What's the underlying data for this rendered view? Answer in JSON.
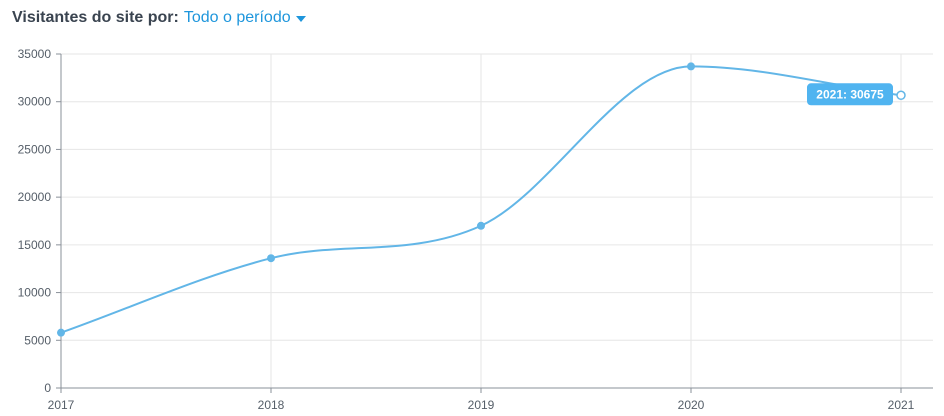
{
  "header": {
    "title": "Visitantes do site por:",
    "period_label": "Todo o período"
  },
  "colors": {
    "line": "#62b6e7",
    "point": "#62b6e7",
    "grid": "#e6e6e6",
    "axis": "#8a9099",
    "tooltip_bg": "#50b4f0",
    "title": "#3a4450",
    "link": "#1e96dc"
  },
  "icons": {
    "period_dropdown": "caret-down-icon"
  },
  "chart_data": {
    "type": "line",
    "title": "",
    "xlabel": "",
    "ylabel": "",
    "categories": [
      "2017",
      "2018",
      "2019",
      "2020",
      "2021"
    ],
    "series": [
      {
        "values": [
          5800,
          13600,
          17000,
          33700,
          30675
        ]
      }
    ],
    "ylim": [
      0,
      35000
    ],
    "yticks": [
      0,
      5000,
      10000,
      15000,
      20000,
      25000,
      30000,
      35000
    ],
    "grid": true,
    "legend": "none",
    "tooltip": {
      "label": "2021: 30675",
      "category": "2021",
      "value": 30675
    }
  }
}
